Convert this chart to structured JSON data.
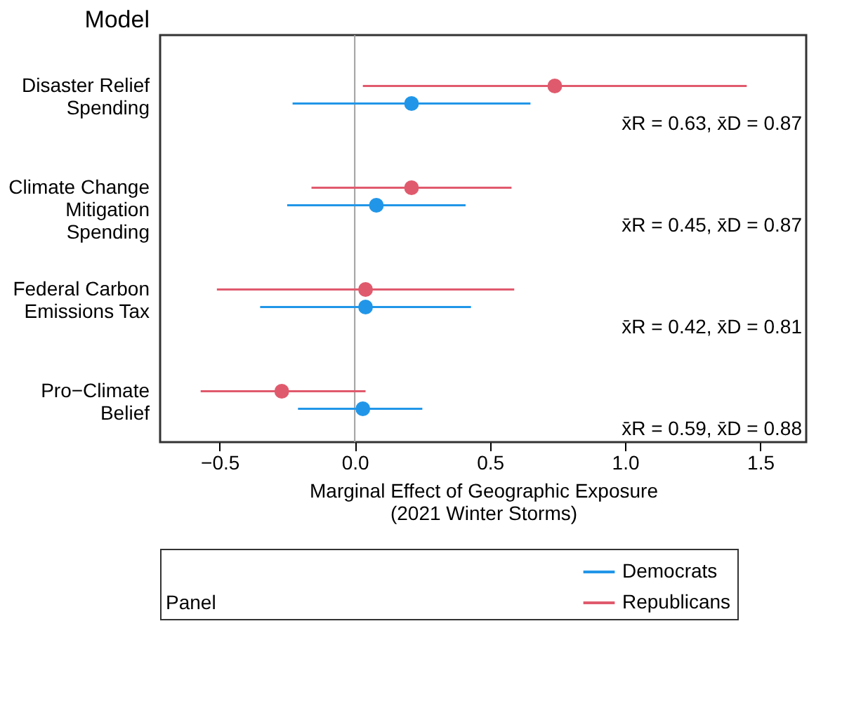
{
  "chart_data": {
    "type": "scatter",
    "orientation": "horizontal",
    "xlabel": "Marginal Effect of Geographic Exposure (2021 Winter Storms)",
    "ylabel": "Model",
    "legend_title": "Panel",
    "legend": "bottom",
    "grid": false,
    "marker": "circle",
    "categories": [
      "Disaster Relief Spending",
      "Climate Change Mitigation Spending",
      "Federal Carbon Emissions Tax",
      "Pro−Climate Belief"
    ],
    "series": [
      {
        "name": "Democrats",
        "color": "#2196e8",
        "values": [
          0.21,
          0.08,
          0.04,
          0.03
        ],
        "errors": [
          [
            -0.23,
            0.65
          ],
          [
            -0.25,
            0.41
          ],
          [
            -0.35,
            0.43
          ],
          [
            -0.21,
            0.25
          ]
        ]
      },
      {
        "name": "Republicans",
        "color": "#e05a6d",
        "values": [
          0.74,
          0.21,
          0.04,
          -0.27
        ],
        "errors": [
          [
            0.03,
            1.45
          ],
          [
            -0.16,
            0.58
          ],
          [
            -0.51,
            0.59
          ],
          [
            -0.57,
            0.04
          ]
        ]
      }
    ],
    "xlim": [
      -0.72,
      1.67
    ],
    "xticks": [
      {
        "value": -0.5,
        "label": "−0.5"
      },
      {
        "value": 0,
        "label": "0.0"
      },
      {
        "value": 0.5,
        "label": "0.5"
      },
      {
        "value": 1,
        "label": "1.0"
      },
      {
        "value": 1.5,
        "label": "1.5"
      }
    ],
    "ref_lines": [
      {
        "axis": "x",
        "value": 0,
        "color": "#a0a0a0"
      }
    ],
    "annotations": [
      "x̄R = 0.63, x̄D = 0.87",
      "x̄R = 0.45, x̄D = 0.87",
      "x̄R = 0.42, x̄D = 0.81",
      "x̄R = 0.59, x̄D = 0.88"
    ]
  }
}
